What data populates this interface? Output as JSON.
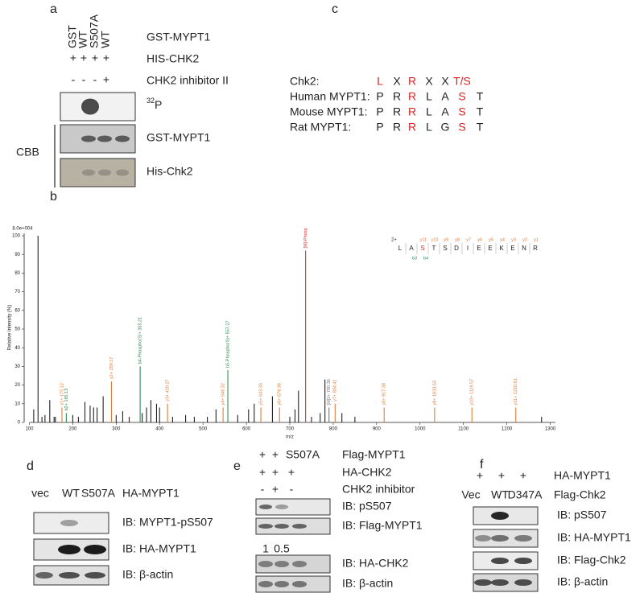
{
  "panel_a": {
    "label": "a",
    "lanes": [
      "GST",
      "WT",
      "S507A",
      "WT"
    ],
    "construct": "GST-MYPT1",
    "rows": [
      {
        "marks": [
          "+",
          "+",
          "+",
          "+"
        ],
        "label": "HIS-CHK2"
      },
      {
        "marks": [
          "-",
          "-",
          "-",
          "+"
        ],
        "label": "CHK2 inhibitor II"
      }
    ],
    "blots": [
      {
        "superscript": "32",
        "label": "P"
      },
      {
        "label": "GST-MYPT1"
      },
      {
        "label": "His-Chk2"
      }
    ],
    "stain": "CBB"
  },
  "panel_b": {
    "label": "b"
  },
  "panel_c": {
    "label": "c",
    "highlight_color": "#e02020",
    "rows": [
      {
        "name": "Chk2:",
        "residues": [
          "L",
          "X",
          "R",
          "X",
          "X",
          "T/S"
        ],
        "highlight": [
          true,
          false,
          true,
          false,
          false,
          true
        ]
      },
      {
        "name": "Human MYPT1:",
        "residues": [
          "P",
          "R",
          "R",
          "L",
          "A",
          "S",
          "T"
        ],
        "highlight": [
          false,
          false,
          true,
          false,
          false,
          true,
          false
        ]
      },
      {
        "name": "Mouse MYPT1:",
        "residues": [
          "P",
          "R",
          "R",
          "L",
          "A",
          "S",
          "T"
        ],
        "highlight": [
          false,
          false,
          true,
          false,
          false,
          true,
          false
        ]
      },
      {
        "name": "Rat MYPT1:",
        "residues": [
          "P",
          "R",
          "R",
          "L",
          "G",
          "S",
          "T"
        ],
        "highlight": [
          false,
          false,
          true,
          false,
          false,
          true,
          false
        ]
      }
    ]
  },
  "chart_data": {
    "type": "spectrum",
    "x_label": "m/z",
    "y_label": "Relative Intensity (%)",
    "scale_note": "8.0e+004",
    "xlim": [
      88,
      1312
    ],
    "ylim": [
      0,
      100
    ],
    "xticks": [
      100,
      200,
      300,
      400,
      500,
      600,
      700,
      800,
      900,
      1000,
      1100,
      1200,
      1300
    ],
    "yticks": [
      0,
      10,
      20,
      30,
      40,
      50,
      60,
      70,
      80,
      90,
      100
    ],
    "x": [
      110,
      120,
      129,
      136,
      147,
      157,
      160,
      175.12,
      185.13,
      200,
      213,
      228,
      240,
      248,
      256,
      270,
      289.17,
      300,
      315,
      330,
      355.21,
      360,
      370,
      380,
      393,
      400,
      418.27,
      430,
      460,
      480,
      510,
      530,
      546.32,
      557.27,
      580,
      605,
      618,
      633.35,
      660,
      676.36,
      700,
      712,
      720,
      736.4,
      750,
      770,
      781,
      790.36,
      804.41,
      820,
      850,
      917.38,
      1033.53,
      1119.57,
      1220.61,
      1280
    ],
    "values": [
      7,
      100,
      3,
      4,
      12,
      3,
      3,
      8,
      5,
      4,
      3,
      11,
      9,
      8,
      8,
      14,
      22,
      4,
      6,
      3,
      30,
      5,
      8,
      12,
      10,
      8,
      10,
      3,
      4,
      3,
      3,
      7,
      8,
      28,
      4,
      7,
      10,
      8,
      14,
      8,
      3,
      7,
      17,
      92,
      3,
      5,
      23,
      8,
      10,
      5,
      3,
      8,
      8,
      8,
      8,
      3
    ],
    "colors": [
      "#222",
      "#222",
      "#222",
      "#222",
      "#222",
      "#222",
      "#222",
      "#e07b39",
      "#2e8b57",
      "#222",
      "#222",
      "#222",
      "#222",
      "#222",
      "#222",
      "#222",
      "#e07b39",
      "#222",
      "#222",
      "#222",
      "#2e8b57",
      "#222",
      "#222",
      "#222",
      "#222",
      "#222",
      "#e07b39",
      "#222",
      "#222",
      "#222",
      "#222",
      "#222",
      "#e07b39",
      "#2e8b57",
      "#222",
      "#222",
      "#222",
      "#e07b39",
      "#222",
      "#e07b39",
      "#222",
      "#222",
      "#222",
      "#e03030",
      "#222",
      "#222",
      "#222",
      "#777",
      "#e07b39",
      "#222",
      "#222",
      "#e07b39",
      "#e07b39",
      "#e07b39",
      "#e07b39",
      "#222"
    ],
    "peak_labels": [
      null,
      null,
      null,
      null,
      null,
      null,
      null,
      "y1+ 175.12",
      "b2+ 185.13",
      null,
      null,
      null,
      null,
      null,
      null,
      null,
      "y2+ 289.17",
      null,
      null,
      null,
      "b4-Phospho(S)+ 355.21",
      null,
      null,
      null,
      null,
      null,
      "y3+ 418.27",
      null,
      null,
      null,
      null,
      null,
      "y4+ 546.32",
      "b5-Phospho(S)+ 557.27",
      null,
      null,
      null,
      "y5+ 633.35",
      null,
      "y6+ 676.36",
      null,
      null,
      null,
      "[M]-Phosp",
      null,
      null,
      null,
      "[M]2+ 790.36",
      "y7+ 804.41",
      null,
      null,
      "y8+ 917.38",
      "y9+ 1033.53",
      "y10+ 1119.57",
      "y11+ 1220.61",
      null
    ],
    "peptide": {
      "charge": "2+",
      "sequence": [
        "L",
        "A",
        "S",
        "T",
        "S",
        "D",
        "I",
        "E",
        "E",
        "K",
        "E",
        "N",
        "R"
      ],
      "modified": [
        false,
        false,
        true,
        false,
        false,
        false,
        false,
        false,
        false,
        false,
        false,
        false,
        false
      ],
      "b_ions": [
        "b3",
        "b4"
      ],
      "y_ions": [
        "y11",
        "y10",
        "y9",
        "y8",
        "y7",
        "y6",
        "y5",
        "y4",
        "y3",
        "y2",
        "y1"
      ]
    }
  },
  "panel_d": {
    "label": "d",
    "lanes": [
      "vec",
      "WT",
      "S507A"
    ],
    "construct": "HA-MYPT1",
    "blots": [
      "IB: MYPT1-pS507",
      "IB: HA-MYPT1",
      "IB: β-actin"
    ]
  },
  "panel_e": {
    "label": "e",
    "rows": [
      {
        "marks": [
          "+",
          "+",
          "S507A"
        ],
        "label": "Flag-MYPT1"
      },
      {
        "marks": [
          "+",
          "+",
          "+"
        ],
        "label": "HA-CHK2"
      },
      {
        "marks": [
          "-",
          "+",
          "-"
        ],
        "label": "CHK2 inhibitor"
      }
    ],
    "blots": [
      "IB: pS507",
      "IB: Flag-MYPT1",
      "IB: HA-CHK2",
      "IB: β-actin"
    ],
    "quantification": [
      1,
      0.5
    ]
  },
  "panel_f": {
    "label": "f",
    "rows": [
      {
        "marks": [
          "+",
          "+",
          "+"
        ],
        "label": "HA-MYPT1"
      },
      {
        "marks": [
          "Vec",
          "WT",
          "D347A"
        ],
        "label": "Flag-Chk2"
      }
    ],
    "blots": [
      "IB: pS507",
      "IB: HA-MYPT1",
      "IB: Flag-Chk2",
      "IB: β-actin"
    ]
  }
}
